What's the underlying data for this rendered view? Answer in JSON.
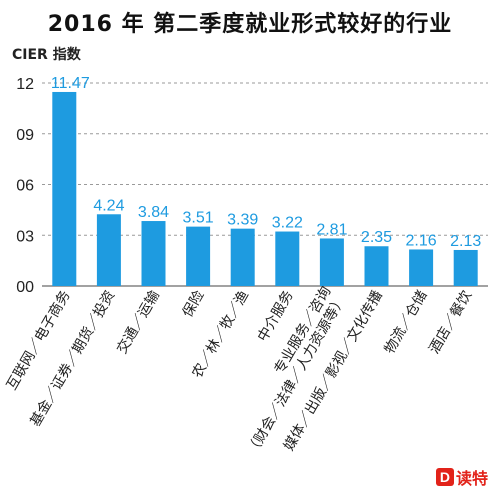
{
  "title": "2016 年 第二季度就业形式较好的行业",
  "chart_data": {
    "type": "bar",
    "ylabel": "CIER 指数",
    "y_ticks": [
      "12",
      "09",
      "06",
      "03",
      "00"
    ],
    "ylim": [
      0,
      12
    ],
    "grid": true,
    "bar_color": "#1e9be0",
    "label_color": "#1e9be0",
    "categories": [
      "互联网/电子商务",
      "基金/证券/期货/投资",
      "交通/运输",
      "保险",
      "农/林/牧/渔",
      "中介服务",
      "专业服务/咨询（财会/法律/人力资源等）",
      "媒体/出版/影视/文化传播",
      "物流/仓储",
      "酒店/餐饮"
    ],
    "category_lines": [
      [
        "互联网／电子商务"
      ],
      [
        "基金／证券／期货／投资"
      ],
      [
        "交通／运输"
      ],
      [
        "保险"
      ],
      [
        "农／林／牧／渔"
      ],
      [
        "中介服务"
      ],
      [
        "专业服务／咨询",
        "（财会／法律／人力资源等）"
      ],
      [
        "媒体／出版／影视／文化传播"
      ],
      [
        "物流／仓储"
      ],
      [
        "酒店／餐饮"
      ]
    ],
    "values": [
      11.47,
      4.24,
      3.84,
      3.51,
      3.39,
      3.22,
      2.81,
      2.35,
      2.16,
      2.13
    ],
    "value_labels": [
      "11.47",
      "4.24",
      "3.84",
      "3.51",
      "3.39",
      "3.22",
      "2.81",
      "2.35",
      "2.16",
      "2.13"
    ]
  },
  "logo": {
    "mark": "D",
    "text": "读特"
  }
}
